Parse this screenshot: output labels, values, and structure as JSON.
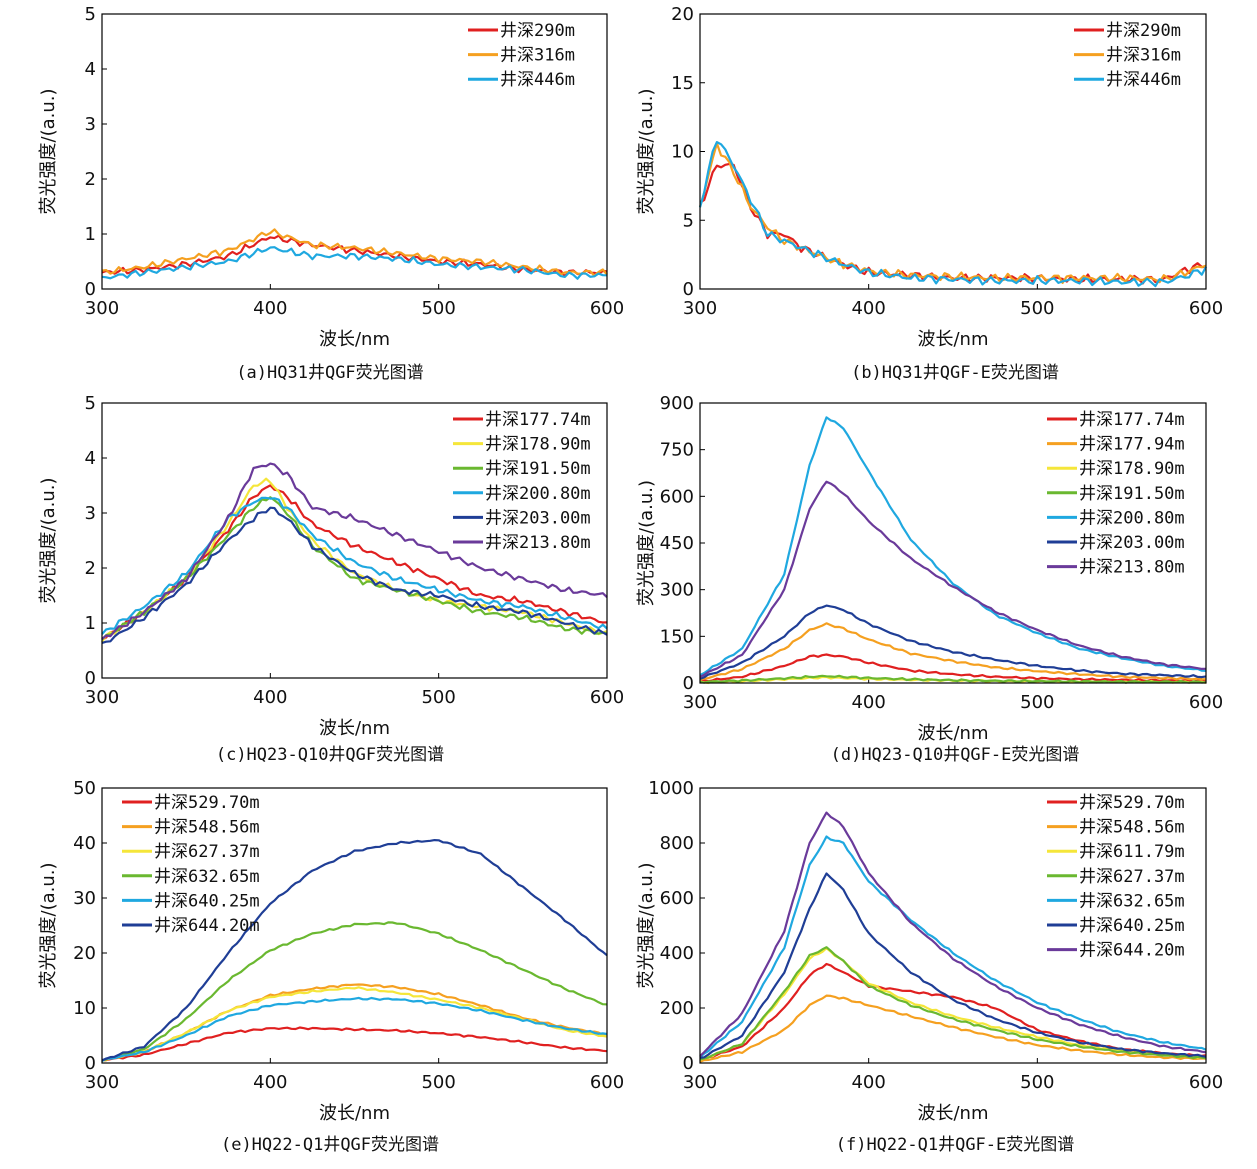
{
  "colors": {
    "red": "#e02020",
    "orange": "#f5a020",
    "yellow": "#f5e63a",
    "green": "#6ab830",
    "lightblue": "#1fa8e0",
    "darkblue": "#1f3e96",
    "purple": "#6a3a9a"
  },
  "chart_data": [
    {
      "type": "line",
      "caption": "(a)HQ31井QGF荧光图谱",
      "xlabel": "波长/nm",
      "ylabel": "荧光强度/(a.u.)",
      "xlim": [
        300,
        600
      ],
      "ylim": [
        0,
        5
      ],
      "xticks": [
        "300",
        "400",
        "500",
        "600"
      ],
      "yticks": [
        "0",
        "1",
        "2",
        "3",
        "4",
        "5"
      ],
      "legend_position": "top-right",
      "x": [
        300,
        325,
        350,
        375,
        400,
        425,
        450,
        475,
        500,
        525,
        550,
        575,
        600
      ],
      "series": [
        {
          "name": "井深290m",
          "color": "red",
          "values": [
            0.3,
            0.35,
            0.45,
            0.6,
            0.95,
            0.8,
            0.7,
            0.6,
            0.5,
            0.45,
            0.35,
            0.3,
            0.3
          ]
        },
        {
          "name": "井深316m",
          "color": "orange",
          "values": [
            0.3,
            0.4,
            0.55,
            0.7,
            1.05,
            0.8,
            0.75,
            0.65,
            0.55,
            0.5,
            0.4,
            0.3,
            0.3
          ]
        },
        {
          "name": "井深446m",
          "color": "lightblue",
          "values": [
            0.2,
            0.3,
            0.4,
            0.5,
            0.75,
            0.6,
            0.6,
            0.55,
            0.45,
            0.4,
            0.35,
            0.25,
            0.25
          ]
        }
      ]
    },
    {
      "type": "line",
      "caption": "(b)HQ31井QGF-E荧光图谱",
      "xlabel": "波长/nm",
      "ylabel": "荧光强度/(a.u.)",
      "xlim": [
        300,
        600
      ],
      "ylim": [
        0,
        20
      ],
      "xticks": [
        "300",
        "400",
        "500",
        "600"
      ],
      "yticks": [
        "0",
        "5",
        "10",
        "15",
        "20"
      ],
      "legend_position": "top-right",
      "x": [
        300,
        310,
        320,
        330,
        340,
        350,
        360,
        370,
        380,
        400,
        425,
        450,
        475,
        500,
        525,
        550,
        575,
        590,
        600
      ],
      "series": [
        {
          "name": "井深290m",
          "color": "red",
          "values": [
            6,
            9,
            9,
            6,
            4,
            4,
            3,
            2.5,
            2,
            1.2,
            1,
            0.8,
            0.8,
            0.8,
            0.7,
            0.7,
            0.7,
            1.5,
            1.8
          ]
        },
        {
          "name": "井深316m",
          "color": "orange",
          "values": [
            6,
            10.5,
            8.5,
            6,
            4.5,
            3.5,
            3,
            2.5,
            2,
            1.3,
            1,
            0.9,
            0.8,
            0.8,
            0.8,
            0.8,
            0.7,
            1.3,
            1.8
          ]
        },
        {
          "name": "井深446m",
          "color": "lightblue",
          "values": [
            6,
            11,
            9,
            6.5,
            4,
            3.5,
            3,
            2.5,
            2,
            1.2,
            0.8,
            0.7,
            0.6,
            0.6,
            0.6,
            0.5,
            0.5,
            1,
            1.5
          ]
        }
      ]
    },
    {
      "type": "line",
      "caption": "(c)HQ23-Q10井QGF荧光图谱",
      "xlabel": "波长/nm",
      "ylabel": "荧光强度/(a.u.)",
      "xlim": [
        300,
        600
      ],
      "ylim": [
        0,
        5
      ],
      "xticks": [
        "300",
        "400",
        "500",
        "600"
      ],
      "yticks": [
        "0",
        "1",
        "2",
        "3",
        "4",
        "5"
      ],
      "legend_position": "top-right",
      "x": [
        300,
        325,
        350,
        375,
        390,
        400,
        410,
        425,
        450,
        475,
        500,
        525,
        550,
        575,
        600
      ],
      "series": [
        {
          "name": "井深177.74m",
          "color": "red",
          "values": [
            0.7,
            1.2,
            1.8,
            2.7,
            3.3,
            3.5,
            3.3,
            2.8,
            2.4,
            2.1,
            1.8,
            1.5,
            1.4,
            1.2,
            1.0
          ]
        },
        {
          "name": "井深178.90m",
          "color": "yellow",
          "values": [
            0.7,
            1.2,
            1.8,
            2.8,
            3.5,
            3.6,
            3.1,
            2.5,
            1.9,
            1.6,
            1.4,
            1.3,
            1.2,
            1.0,
            0.8
          ]
        },
        {
          "name": "井深191.50m",
          "color": "green",
          "values": [
            0.7,
            1.2,
            1.8,
            2.6,
            3.1,
            3.3,
            3.0,
            2.4,
            1.8,
            1.6,
            1.4,
            1.2,
            1.1,
            0.9,
            0.8
          ]
        },
        {
          "name": "井深200.80m",
          "color": "lightblue",
          "values": [
            0.8,
            1.3,
            1.9,
            2.9,
            3.2,
            3.3,
            3.1,
            2.6,
            2.1,
            1.8,
            1.6,
            1.4,
            1.3,
            1.1,
            0.9
          ]
        },
        {
          "name": "井深203.00m",
          "color": "darkblue",
          "values": [
            0.6,
            1.1,
            1.7,
            2.5,
            2.9,
            3.1,
            2.9,
            2.4,
            1.9,
            1.6,
            1.5,
            1.3,
            1.2,
            1.0,
            0.8
          ]
        },
        {
          "name": "井深213.80m",
          "color": "purple",
          "values": [
            0.7,
            1.2,
            1.8,
            2.9,
            3.8,
            3.9,
            3.7,
            3.1,
            2.9,
            2.6,
            2.3,
            2.0,
            1.8,
            1.6,
            1.5
          ]
        }
      ]
    },
    {
      "type": "line",
      "caption": "(d)HQ23-Q10井QGF-E荧光图谱",
      "xlabel": "波长/nm",
      "ylabel": "荧光强度/(a.u.)",
      "xlim": [
        300,
        600
      ],
      "ylim": [
        0,
        900
      ],
      "xticks": [
        "300",
        "400",
        "500",
        "600"
      ],
      "yticks": [
        "0",
        "150",
        "300",
        "450",
        "600",
        "750",
        "900"
      ],
      "legend_position": "top-right",
      "x": [
        300,
        325,
        350,
        365,
        375,
        385,
        400,
        425,
        450,
        475,
        500,
        525,
        550,
        575,
        600
      ],
      "series": [
        {
          "name": "井深177.74m",
          "color": "red",
          "values": [
            5,
            20,
            55,
            85,
            90,
            85,
            65,
            40,
            28,
            20,
            15,
            12,
            10,
            8,
            7
          ]
        },
        {
          "name": "井深177.94m",
          "color": "orange",
          "values": [
            10,
            45,
            110,
            170,
            190,
            175,
            140,
            95,
            70,
            50,
            38,
            28,
            20,
            16,
            12
          ]
        },
        {
          "name": "井深178.90m",
          "color": "yellow",
          "values": [
            2,
            6,
            12,
            16,
            18,
            16,
            13,
            10,
            8,
            6,
            5,
            4,
            4,
            3,
            3
          ]
        },
        {
          "name": "井深191.50m",
          "color": "green",
          "values": [
            3,
            8,
            15,
            20,
            22,
            20,
            16,
            12,
            9,
            7,
            6,
            5,
            4,
            4,
            3
          ]
        },
        {
          "name": "井深200.80m",
          "color": "lightblue",
          "values": [
            25,
            110,
            350,
            700,
            855,
            820,
            680,
            460,
            320,
            220,
            160,
            110,
            80,
            55,
            40
          ]
        },
        {
          "name": "井深203.00m",
          "color": "darkblue",
          "values": [
            15,
            65,
            150,
            225,
            250,
            235,
            190,
            135,
            100,
            75,
            55,
            40,
            30,
            25,
            20
          ]
        },
        {
          "name": "井深213.80m",
          "color": "purple",
          "values": [
            20,
            90,
            300,
            560,
            650,
            610,
            520,
            400,
            310,
            230,
            170,
            120,
            85,
            60,
            45
          ]
        }
      ]
    },
    {
      "type": "line",
      "caption": "(e)HQ22-Q1井QGF荧光图谱",
      "xlabel": "波长/nm",
      "ylabel": "荧光强度/(a.u.)",
      "xlim": [
        300,
        600
      ],
      "ylim": [
        0,
        50
      ],
      "xticks": [
        "300",
        "400",
        "500",
        "600"
      ],
      "yticks": [
        "0",
        "10",
        "20",
        "30",
        "40",
        "50"
      ],
      "legend_position": "top-left",
      "x": [
        300,
        325,
        350,
        375,
        400,
        425,
        450,
        475,
        500,
        525,
        550,
        575,
        600
      ],
      "series": [
        {
          "name": "井深529.70m",
          "color": "red",
          "values": [
            0.5,
            1.5,
            3.5,
            5.5,
            6.3,
            6.3,
            6.1,
            5.9,
            5.4,
            4.7,
            3.8,
            2.8,
            2.2
          ]
        },
        {
          "name": "井深548.56m",
          "color": "orange",
          "values": [
            0.5,
            2,
            5.5,
            9.5,
            12.3,
            13.5,
            14.3,
            13.8,
            12.5,
            10.5,
            8.2,
            6.5,
            5.2
          ]
        },
        {
          "name": "井深627.37m",
          "color": "yellow",
          "values": [
            0.5,
            2,
            5.5,
            9.5,
            12,
            13,
            13.7,
            12.8,
            11.5,
            10,
            8,
            6,
            4.8
          ]
        },
        {
          "name": "井深632.65m",
          "color": "green",
          "values": [
            0.5,
            2.5,
            8,
            15,
            20.5,
            23.5,
            25.2,
            25.5,
            23.5,
            20.5,
            17,
            13.5,
            10.5
          ]
        },
        {
          "name": "井深640.25m",
          "color": "lightblue",
          "values": [
            0.5,
            2,
            5,
            8.5,
            10.5,
            11.2,
            11.7,
            11.6,
            10.8,
            9.5,
            7.8,
            6.3,
            5.2
          ]
        },
        {
          "name": "井深644.20m",
          "color": "darkblue",
          "values": [
            0.5,
            3,
            10,
            20,
            29,
            35,
            38.5,
            40,
            40.5,
            38,
            32,
            26,
            19.5
          ]
        }
      ]
    },
    {
      "type": "line",
      "caption": "(f)HQ22-Q1井QGF-E荧光图谱",
      "xlabel": "波长/nm",
      "ylabel": "荧光强度/(a.u.)",
      "xlim": [
        300,
        600
      ],
      "ylim": [
        0,
        1000
      ],
      "xticks": [
        "300",
        "400",
        "500",
        "600"
      ],
      "yticks": [
        "0",
        "200",
        "400",
        "600",
        "800",
        "1000"
      ],
      "legend_position": "top-right",
      "x": [
        300,
        325,
        350,
        365,
        375,
        385,
        400,
        425,
        450,
        475,
        500,
        525,
        550,
        575,
        600
      ],
      "series": [
        {
          "name": "井深529.70m",
          "color": "red",
          "values": [
            10,
            60,
            200,
            320,
            360,
            330,
            280,
            260,
            240,
            200,
            120,
            80,
            50,
            35,
            25
          ]
        },
        {
          "name": "井深548.56m",
          "color": "orange",
          "values": [
            5,
            40,
            120,
            210,
            245,
            235,
            210,
            170,
            130,
            95,
            65,
            45,
            30,
            20,
            15
          ]
        },
        {
          "name": "井深611.79m",
          "color": "yellow",
          "values": [
            10,
            70,
            250,
            380,
            415,
            370,
            290,
            220,
            170,
            130,
            95,
            65,
            45,
            30,
            20
          ]
        },
        {
          "name": "井深627.37m",
          "color": "green",
          "values": [
            10,
            70,
            260,
            390,
            420,
            370,
            280,
            210,
            160,
            120,
            85,
            60,
            40,
            28,
            18
          ]
        },
        {
          "name": "井深632.65m",
          "color": "lightblue",
          "values": [
            20,
            150,
            420,
            720,
            820,
            800,
            660,
            520,
            400,
            300,
            220,
            160,
            110,
            75,
            50
          ]
        },
        {
          "name": "井深640.25m",
          "color": "darkblue",
          "values": [
            15,
            100,
            330,
            560,
            690,
            630,
            470,
            330,
            230,
            160,
            110,
            75,
            50,
            35,
            25
          ]
        },
        {
          "name": "井深644.20m",
          "color": "purple",
          "values": [
            25,
            180,
            480,
            800,
            910,
            860,
            690,
            510,
            380,
            280,
            200,
            140,
            95,
            60,
            40
          ]
        }
      ]
    }
  ]
}
